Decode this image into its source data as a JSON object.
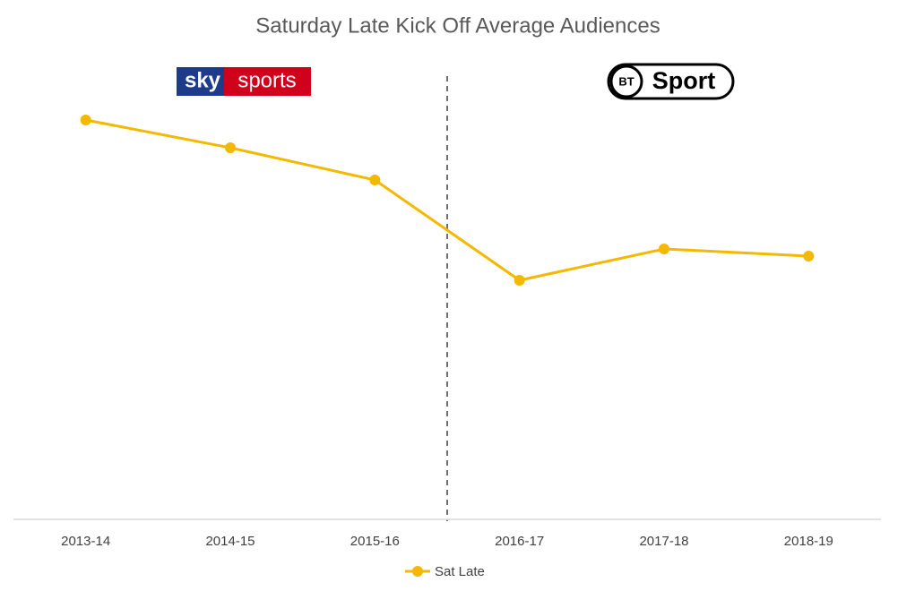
{
  "chart_data": {
    "type": "line",
    "title": "Saturday Late Kick Off Average Audiences",
    "categories": [
      "2013-14",
      "2014-15",
      "2015-16",
      "2016-17",
      "2017-18",
      "2018-19"
    ],
    "series": [
      {
        "name": "Sat Late",
        "color": "#f5b800",
        "values": [
          446,
          415,
          379,
          267,
          302,
          294
        ]
      }
    ],
    "ylim": [
      0,
      500
    ],
    "annotations": {
      "sky": "sky",
      "sports": "sports",
      "bt": "BT",
      "sport": "Sport"
    }
  }
}
